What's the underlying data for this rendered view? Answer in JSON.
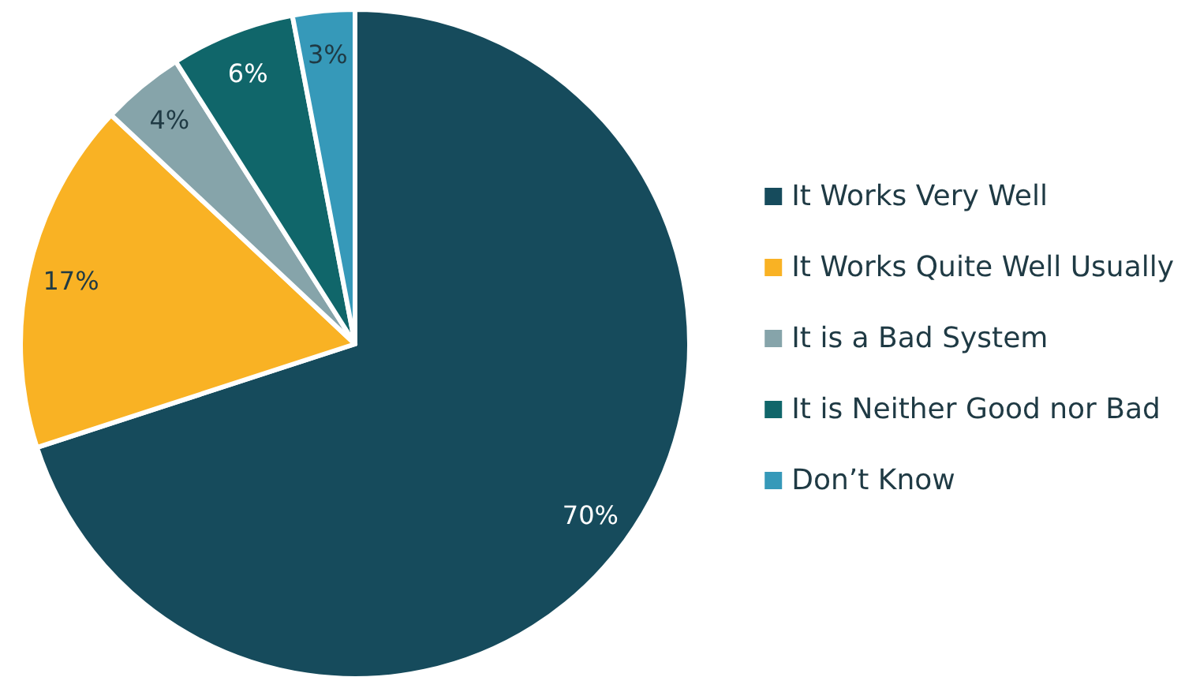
{
  "chart_data": {
    "type": "pie",
    "categories": [
      "It Works Very Well",
      "It Works Quite Well Usually",
      "It is a Bad System",
      "It is Neither Good nor Bad",
      "Don’t Know"
    ],
    "values": [
      70,
      17,
      4,
      6,
      3
    ],
    "colors": [
      "#164b5c",
      "#f9b224",
      "#86a4aa",
      "#10666a",
      "#3699b9"
    ],
    "value_labels": [
      "70%",
      "17%",
      "4%",
      "6%",
      "3%"
    ],
    "legend": "right"
  }
}
